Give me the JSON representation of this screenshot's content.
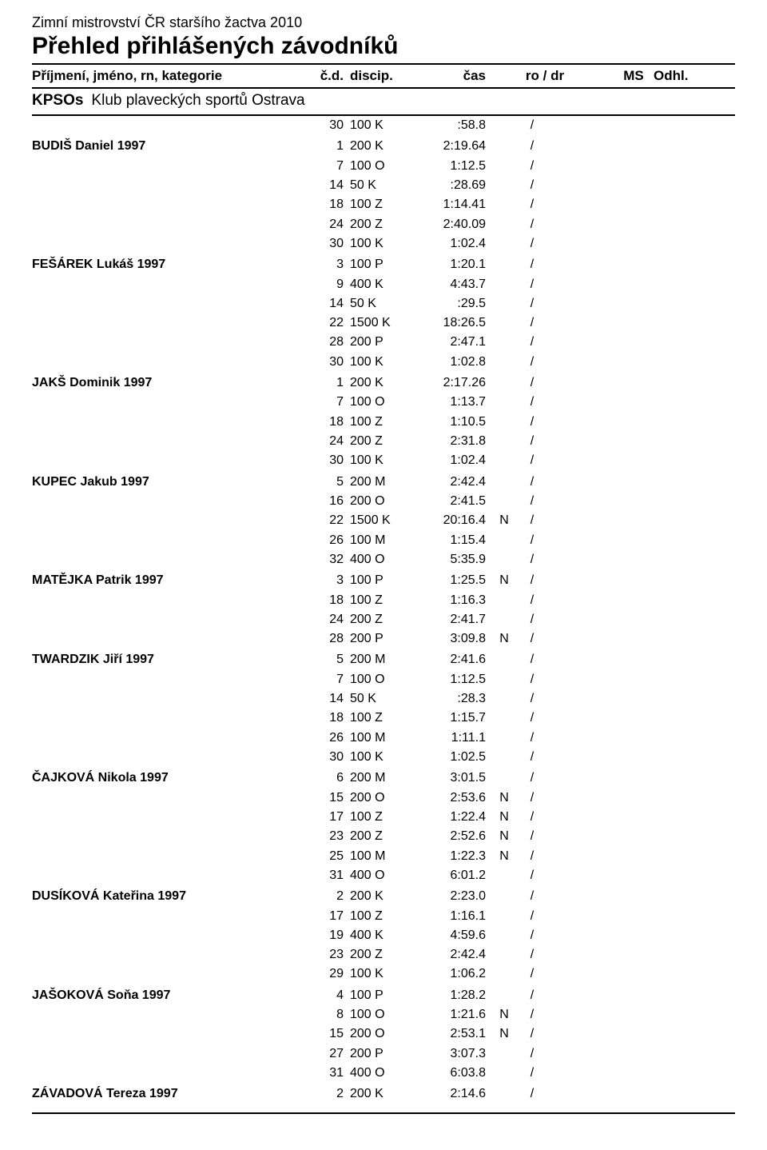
{
  "event_title": "Zimní mistrovství ČR staršího žactva 2010",
  "page_title": "Přehled přihlášených závodníků",
  "headers": {
    "name": "Příjmení, jméno, rn, kategorie",
    "cd": "č.d.",
    "disc": "discip.",
    "time": "čas",
    "ro_dr": "ro  /  dr",
    "ms": "MS",
    "odhl": "Odhl."
  },
  "club": {
    "code": "KPSOs",
    "name": "Klub plaveckých sportů Ostrava"
  },
  "athletes": [
    {
      "name": "",
      "results": [
        {
          "cd": "30",
          "disc": "100 K",
          "time": ":58.8",
          "flag": "",
          "sep": "/"
        }
      ]
    },
    {
      "name": "BUDIŠ Daniel 1997",
      "results": [
        {
          "cd": "1",
          "disc": "200 K",
          "time": "2:19.64",
          "flag": "",
          "sep": "/"
        },
        {
          "cd": "7",
          "disc": "100 O",
          "time": "1:12.5",
          "flag": "",
          "sep": "/"
        },
        {
          "cd": "14",
          "disc": "50 K",
          "time": ":28.69",
          "flag": "",
          "sep": "/"
        },
        {
          "cd": "18",
          "disc": "100 Z",
          "time": "1:14.41",
          "flag": "",
          "sep": "/"
        },
        {
          "cd": "24",
          "disc": "200 Z",
          "time": "2:40.09",
          "flag": "",
          "sep": "/"
        },
        {
          "cd": "30",
          "disc": "100 K",
          "time": "1:02.4",
          "flag": "",
          "sep": "/"
        }
      ]
    },
    {
      "name": "FEŠÁREK Lukáš 1997",
      "results": [
        {
          "cd": "3",
          "disc": "100 P",
          "time": "1:20.1",
          "flag": "",
          "sep": "/"
        },
        {
          "cd": "9",
          "disc": "400 K",
          "time": "4:43.7",
          "flag": "",
          "sep": "/"
        },
        {
          "cd": "14",
          "disc": "50 K",
          "time": ":29.5",
          "flag": "",
          "sep": "/"
        },
        {
          "cd": "22",
          "disc": "1500 K",
          "time": "18:26.5",
          "flag": "",
          "sep": "/"
        },
        {
          "cd": "28",
          "disc": "200 P",
          "time": "2:47.1",
          "flag": "",
          "sep": "/"
        },
        {
          "cd": "30",
          "disc": "100 K",
          "time": "1:02.8",
          "flag": "",
          "sep": "/"
        }
      ]
    },
    {
      "name": "JAKŠ Dominik 1997",
      "results": [
        {
          "cd": "1",
          "disc": "200 K",
          "time": "2:17.26",
          "flag": "",
          "sep": "/"
        },
        {
          "cd": "7",
          "disc": "100 O",
          "time": "1:13.7",
          "flag": "",
          "sep": "/"
        },
        {
          "cd": "18",
          "disc": "100 Z",
          "time": "1:10.5",
          "flag": "",
          "sep": "/"
        },
        {
          "cd": "24",
          "disc": "200 Z",
          "time": "2:31.8",
          "flag": "",
          "sep": "/"
        },
        {
          "cd": "30",
          "disc": "100 K",
          "time": "1:02.4",
          "flag": "",
          "sep": "/"
        }
      ]
    },
    {
      "name": "KUPEC Jakub 1997",
      "results": [
        {
          "cd": "5",
          "disc": "200 M",
          "time": "2:42.4",
          "flag": "",
          "sep": "/"
        },
        {
          "cd": "16",
          "disc": "200 O",
          "time": "2:41.5",
          "flag": "",
          "sep": "/"
        },
        {
          "cd": "22",
          "disc": "1500 K",
          "time": "20:16.4",
          "flag": "N",
          "sep": "/"
        },
        {
          "cd": "26",
          "disc": "100 M",
          "time": "1:15.4",
          "flag": "",
          "sep": "/"
        },
        {
          "cd": "32",
          "disc": "400 O",
          "time": "5:35.9",
          "flag": "",
          "sep": "/"
        }
      ]
    },
    {
      "name": "MATĚJKA Patrik 1997",
      "results": [
        {
          "cd": "3",
          "disc": "100 P",
          "time": "1:25.5",
          "flag": "N",
          "sep": "/"
        },
        {
          "cd": "18",
          "disc": "100 Z",
          "time": "1:16.3",
          "flag": "",
          "sep": "/"
        },
        {
          "cd": "24",
          "disc": "200 Z",
          "time": "2:41.7",
          "flag": "",
          "sep": "/"
        },
        {
          "cd": "28",
          "disc": "200 P",
          "time": "3:09.8",
          "flag": "N",
          "sep": "/"
        }
      ]
    },
    {
      "name": "TWARDZIK Jiří 1997",
      "results": [
        {
          "cd": "5",
          "disc": "200 M",
          "time": "2:41.6",
          "flag": "",
          "sep": "/"
        },
        {
          "cd": "7",
          "disc": "100 O",
          "time": "1:12.5",
          "flag": "",
          "sep": "/"
        },
        {
          "cd": "14",
          "disc": "50 K",
          "time": ":28.3",
          "flag": "",
          "sep": "/"
        },
        {
          "cd": "18",
          "disc": "100 Z",
          "time": "1:15.7",
          "flag": "",
          "sep": "/"
        },
        {
          "cd": "26",
          "disc": "100 M",
          "time": "1:11.1",
          "flag": "",
          "sep": "/"
        },
        {
          "cd": "30",
          "disc": "100 K",
          "time": "1:02.5",
          "flag": "",
          "sep": "/"
        }
      ]
    },
    {
      "name": "ČAJKOVÁ Nikola 1997",
      "results": [
        {
          "cd": "6",
          "disc": "200 M",
          "time": "3:01.5",
          "flag": "",
          "sep": "/"
        },
        {
          "cd": "15",
          "disc": "200 O",
          "time": "2:53.6",
          "flag": "N",
          "sep": "/"
        },
        {
          "cd": "17",
          "disc": "100 Z",
          "time": "1:22.4",
          "flag": "N",
          "sep": "/"
        },
        {
          "cd": "23",
          "disc": "200 Z",
          "time": "2:52.6",
          "flag": "N",
          "sep": "/"
        },
        {
          "cd": "25",
          "disc": "100 M",
          "time": "1:22.3",
          "flag": "N",
          "sep": "/"
        },
        {
          "cd": "31",
          "disc": "400 O",
          "time": "6:01.2",
          "flag": "",
          "sep": "/"
        }
      ]
    },
    {
      "name": "DUSÍKOVÁ Kateřina 1997",
      "results": [
        {
          "cd": "2",
          "disc": "200 K",
          "time": "2:23.0",
          "flag": "",
          "sep": "/"
        },
        {
          "cd": "17",
          "disc": "100 Z",
          "time": "1:16.1",
          "flag": "",
          "sep": "/"
        },
        {
          "cd": "19",
          "disc": "400 K",
          "time": "4:59.6",
          "flag": "",
          "sep": "/"
        },
        {
          "cd": "23",
          "disc": "200 Z",
          "time": "2:42.4",
          "flag": "",
          "sep": "/"
        },
        {
          "cd": "29",
          "disc": "100 K",
          "time": "1:06.2",
          "flag": "",
          "sep": "/"
        }
      ]
    },
    {
      "name": "JAŠOKOVÁ Soňa 1997",
      "results": [
        {
          "cd": "4",
          "disc": "100 P",
          "time": "1:28.2",
          "flag": "",
          "sep": "/"
        },
        {
          "cd": "8",
          "disc": "100 O",
          "time": "1:21.6",
          "flag": "N",
          "sep": "/"
        },
        {
          "cd": "15",
          "disc": "200 O",
          "time": "2:53.1",
          "flag": "N",
          "sep": "/"
        },
        {
          "cd": "27",
          "disc": "200 P",
          "time": "3:07.3",
          "flag": "",
          "sep": "/"
        },
        {
          "cd": "31",
          "disc": "400 O",
          "time": "6:03.8",
          "flag": "",
          "sep": "/"
        }
      ]
    },
    {
      "name": "ZÁVADOVÁ Tereza 1997",
      "results": [
        {
          "cd": "2",
          "disc": "200 K",
          "time": "2:14.6",
          "flag": "",
          "sep": "/"
        }
      ]
    }
  ],
  "style": {
    "text_color": "#000000",
    "background": "#ffffff",
    "rule_color": "#000000",
    "fonts": {
      "family": "Arial",
      "body_pt": 12,
      "title_pt": 22,
      "subtitle_pt": 13
    }
  }
}
